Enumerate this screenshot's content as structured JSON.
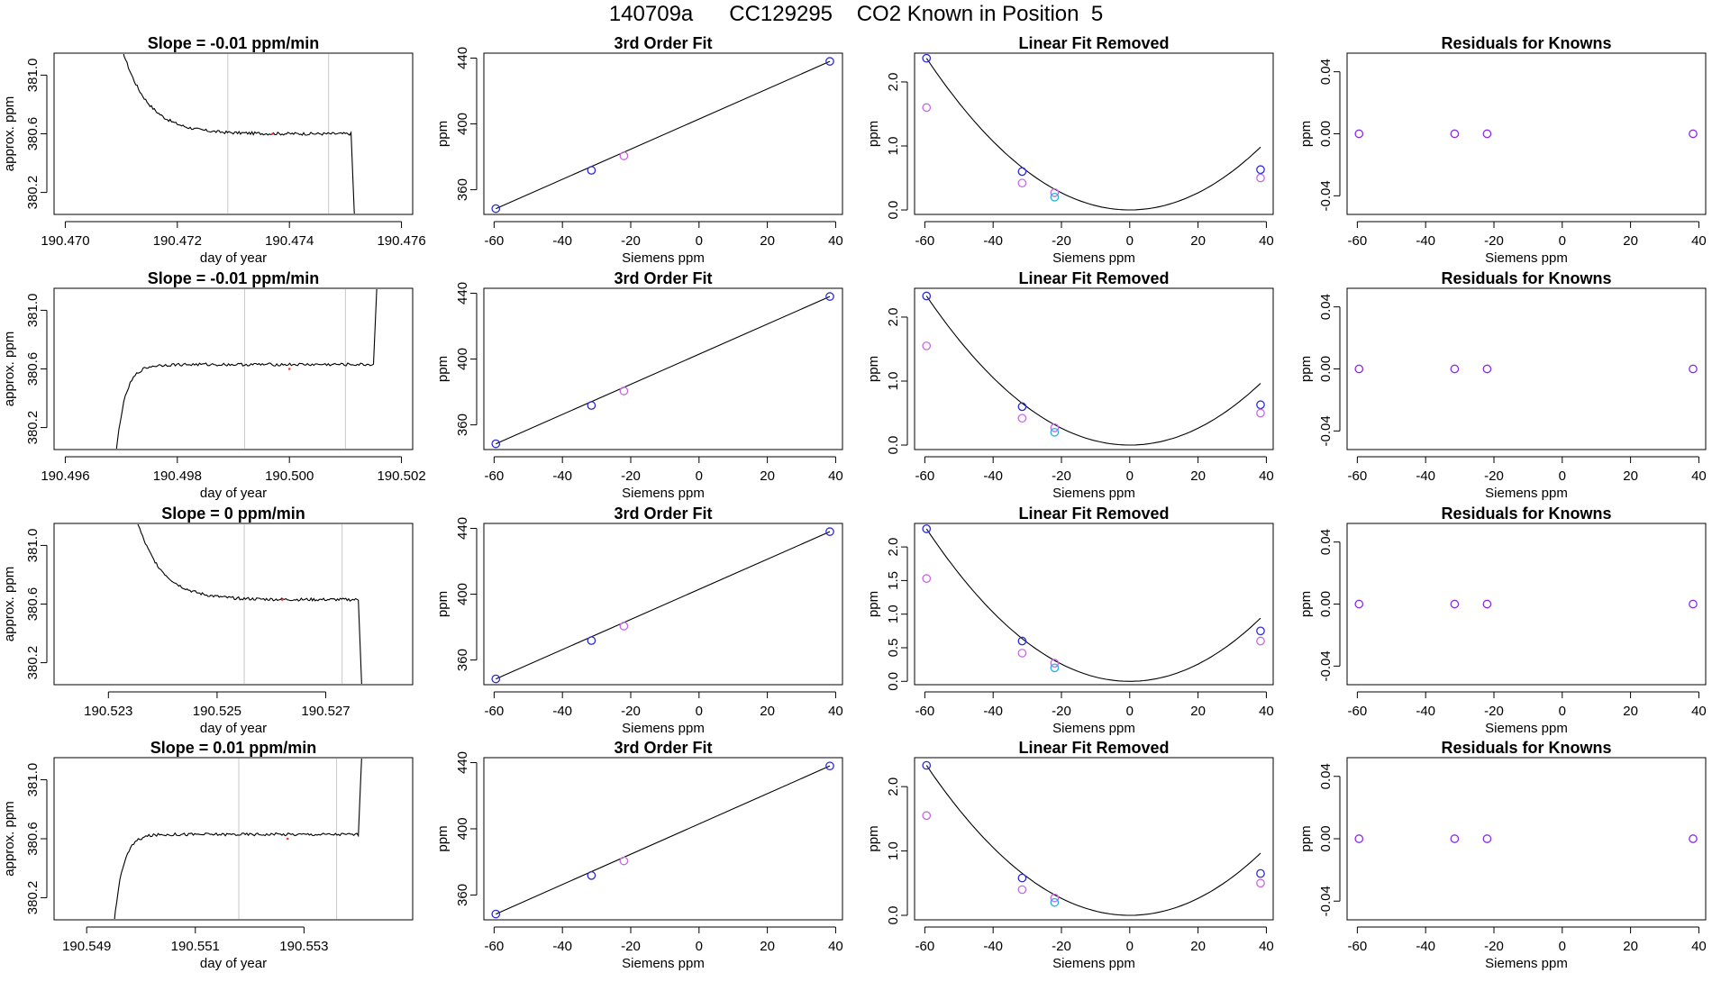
{
  "header": {
    "title": "140709a      CC129295    CO2 Known in Position  5"
  },
  "colors": {
    "axis": "#000000",
    "trace": "#000000",
    "marker_line": "#c8c8c8",
    "fit_point": "#2b2bd6",
    "reference_point": "#c66adf",
    "lin_point_blue": "#2b2bd6",
    "lin_point_violet": "#c66adf",
    "lin_point_cyan": "#20b2e0",
    "residual_point": "#8a2be2",
    "red_dot": "#ff3333"
  },
  "chart_data": [
    {
      "row": 1,
      "type": "line",
      "title": "Slope =  -0.01  ppm/min",
      "xlabel": "day of year",
      "ylabel": "approx. ppm",
      "xlim": [
        190.4698,
        190.4762
      ],
      "ylim": [
        380.05,
        381.15
      ],
      "xticks": [
        190.47,
        190.472,
        190.474,
        190.476
      ],
      "xtick_labels": [
        "190.470",
        "190.472",
        "190.474",
        "190.476"
      ],
      "yticks": [
        380.2,
        380.6,
        381.0
      ],
      "ytick_labels": [
        "380.2",
        "380.6",
        "381.0"
      ],
      "markers": [
        190.4729,
        190.4747
      ],
      "trace": {
        "shape": "decay",
        "x0": 190.471,
        "x1": 190.4751,
        "xfall": 190.4751,
        "ystart": 381.2,
        "ylevel": 380.6,
        "yend": 380.0
      },
      "red_dot": [
        190.4737,
        380.6
      ]
    },
    {
      "row": 1,
      "type": "scatter",
      "title": "3rd Order Fit",
      "xlabel": "Siemens ppm",
      "ylabel": "ppm",
      "xlim": [
        -63,
        42
      ],
      "ylim": [
        345,
        443
      ],
      "xticks": [
        -60,
        -40,
        -20,
        0,
        20,
        40
      ],
      "xtick_labels": [
        "-60",
        "-40",
        "-20",
        "0",
        "20",
        "40"
      ],
      "yticks": [
        360,
        400,
        440
      ],
      "ytick_labels": [
        "360",
        "400",
        "440"
      ],
      "line": [
        [
          -59.5,
          348.5
        ],
        [
          38.3,
          438.0
        ]
      ],
      "points": [
        {
          "x": -59.5,
          "y": 348.5,
          "c": "blue"
        },
        {
          "x": -31.5,
          "y": 371.8,
          "c": "blue"
        },
        {
          "x": -22,
          "y": 380.6,
          "c": "violet"
        },
        {
          "x": 38.3,
          "y": 438.0,
          "c": "blue"
        }
      ]
    },
    {
      "row": 1,
      "type": "scatter",
      "title": "Linear Fit Removed",
      "xlabel": "Siemens ppm",
      "ylabel": "ppm",
      "xlim": [
        -63,
        42
      ],
      "ylim": [
        -0.07,
        2.45
      ],
      "xticks": [
        -60,
        -40,
        -20,
        0,
        20,
        40
      ],
      "xtick_labels": [
        "-60",
        "-40",
        "-20",
        "0",
        "20",
        "40"
      ],
      "yticks": [
        0.0,
        1.0,
        2.0
      ],
      "ytick_labels": [
        "0.0",
        "1.0",
        "2.0"
      ],
      "curve": {
        "vertex": 0,
        "y_left": 2.37,
        "x_left": -59.5,
        "x_right": 38.3
      },
      "points": [
        {
          "x": -59.5,
          "y": 2.37,
          "c": "blue"
        },
        {
          "x": -59.5,
          "y": 1.6,
          "c": "violet"
        },
        {
          "x": -31.5,
          "y": 0.6,
          "c": "blue"
        },
        {
          "x": -31.5,
          "y": 0.42,
          "c": "violet"
        },
        {
          "x": -22,
          "y": 0.27,
          "c": "violet"
        },
        {
          "x": -22,
          "y": 0.2,
          "c": "cyan"
        },
        {
          "x": 38.3,
          "y": 0.63,
          "c": "blue"
        },
        {
          "x": 38.3,
          "y": 0.5,
          "c": "violet"
        }
      ]
    },
    {
      "row": 1,
      "type": "scatter",
      "title": "Residuals for Knowns",
      "xlabel": "Siemens ppm",
      "ylabel": "ppm",
      "xlim": [
        -63,
        42
      ],
      "ylim": [
        -0.052,
        0.052
      ],
      "xticks": [
        -60,
        -40,
        -20,
        0,
        20,
        40
      ],
      "xtick_labels": [
        "-60",
        "-40",
        "-20",
        "0",
        "20",
        "40"
      ],
      "yticks": [
        -0.04,
        0.0,
        0.04
      ],
      "ytick_labels": [
        "-0.04",
        "0.00",
        "0.04"
      ],
      "points": [
        {
          "x": -59.5,
          "y": 0,
          "c": "purple"
        },
        {
          "x": -31.5,
          "y": 0,
          "c": "purple"
        },
        {
          "x": -22,
          "y": 0,
          "c": "purple"
        },
        {
          "x": 38.3,
          "y": 0,
          "c": "purple"
        }
      ]
    },
    {
      "row": 2,
      "type": "line",
      "title": "Slope =  -0.01  ppm/min",
      "xlabel": "day of year",
      "ylabel": "approx. ppm",
      "xlim": [
        190.4958,
        190.5022
      ],
      "ylim": [
        380.05,
        381.15
      ],
      "xticks": [
        190.496,
        190.498,
        190.5,
        190.502
      ],
      "xtick_labels": [
        "190.496",
        "190.498",
        "190.500",
        "190.502"
      ],
      "yticks": [
        380.2,
        380.6,
        381.0
      ],
      "ytick_labels": [
        "380.2",
        "380.6",
        "381.0"
      ],
      "markers": [
        190.4992,
        190.501
      ],
      "trace": {
        "shape": "rise",
        "x0": 190.4969,
        "x1": 190.5015,
        "xfall": 190.5015,
        "ystart": 380.0,
        "ylevel": 380.63,
        "yend": 381.2
      },
      "red_dot": [
        190.5,
        380.6
      ]
    },
    {
      "row": 2,
      "type": "scatter",
      "title": "3rd Order Fit",
      "xlabel": "Siemens ppm",
      "ylabel": "ppm",
      "xlim": [
        -63,
        42
      ],
      "ylim": [
        345,
        443
      ],
      "xticks": [
        -60,
        -40,
        -20,
        0,
        20,
        40
      ],
      "xtick_labels": [
        "-60",
        "-40",
        "-20",
        "0",
        "20",
        "40"
      ],
      "yticks": [
        360,
        400,
        440
      ],
      "ytick_labels": [
        "360",
        "400",
        "440"
      ],
      "line": [
        [
          -59.5,
          348.5
        ],
        [
          38.3,
          438.0
        ]
      ],
      "points": [
        {
          "x": -59.5,
          "y": 348.5,
          "c": "blue"
        },
        {
          "x": -31.5,
          "y": 371.8,
          "c": "blue"
        },
        {
          "x": -22,
          "y": 380.6,
          "c": "violet"
        },
        {
          "x": 38.3,
          "y": 438.0,
          "c": "blue"
        }
      ]
    },
    {
      "row": 2,
      "type": "scatter",
      "title": "Linear Fit Removed",
      "xlabel": "Siemens ppm",
      "ylabel": "ppm",
      "xlim": [
        -63,
        42
      ],
      "ylim": [
        -0.07,
        2.45
      ],
      "xticks": [
        -60,
        -40,
        -20,
        0,
        20,
        40
      ],
      "xtick_labels": [
        "-60",
        "-40",
        "-20",
        "0",
        "20",
        "40"
      ],
      "yticks": [
        0.0,
        1.0,
        2.0
      ],
      "ytick_labels": [
        "0.0",
        "1.0",
        "2.0"
      ],
      "curve": {
        "vertex": 0,
        "y_left": 2.33,
        "x_left": -59.5,
        "x_right": 38.3
      },
      "points": [
        {
          "x": -59.5,
          "y": 2.33,
          "c": "blue"
        },
        {
          "x": -59.5,
          "y": 1.55,
          "c": "violet"
        },
        {
          "x": -31.5,
          "y": 0.6,
          "c": "blue"
        },
        {
          "x": -31.5,
          "y": 0.42,
          "c": "violet"
        },
        {
          "x": -22,
          "y": 0.27,
          "c": "violet"
        },
        {
          "x": -22,
          "y": 0.2,
          "c": "cyan"
        },
        {
          "x": 38.3,
          "y": 0.63,
          "c": "blue"
        },
        {
          "x": 38.3,
          "y": 0.5,
          "c": "violet"
        }
      ]
    },
    {
      "row": 2,
      "type": "scatter",
      "title": "Residuals for Knowns",
      "xlabel": "Siemens ppm",
      "ylabel": "ppm",
      "xlim": [
        -63,
        42
      ],
      "ylim": [
        -0.052,
        0.052
      ],
      "xticks": [
        -60,
        -40,
        -20,
        0,
        20,
        40
      ],
      "xtick_labels": [
        "-60",
        "-40",
        "-20",
        "0",
        "20",
        "40"
      ],
      "yticks": [
        -0.04,
        0.0,
        0.04
      ],
      "ytick_labels": [
        "-0.04",
        "0.00",
        "0.04"
      ],
      "points": [
        {
          "x": -59.5,
          "y": 0,
          "c": "purple"
        },
        {
          "x": -31.5,
          "y": 0,
          "c": "purple"
        },
        {
          "x": -22,
          "y": 0,
          "c": "purple"
        },
        {
          "x": 38.3,
          "y": 0,
          "c": "purple"
        }
      ]
    },
    {
      "row": 3,
      "type": "line",
      "title": "Slope =  0  ppm/min",
      "xlabel": "day of year",
      "ylabel": "approx. ppm",
      "xlim": [
        190.522,
        190.5286
      ],
      "ylim": [
        380.05,
        381.15
      ],
      "xticks": [
        190.523,
        190.525,
        190.527
      ],
      "xtick_labels": [
        "190.523",
        "190.525",
        "190.527"
      ],
      "yticks": [
        380.2,
        380.6,
        381.0
      ],
      "ytick_labels": [
        "380.2",
        "380.6",
        "381.0"
      ],
      "markers": [
        190.5255,
        190.5273
      ],
      "trace": {
        "shape": "decay",
        "x0": 190.5235,
        "x1": 190.5276,
        "xfall": 190.5276,
        "ystart": 381.2,
        "ylevel": 380.63,
        "yend": 380.0
      },
      "red_dot": [
        190.5262,
        380.63
      ]
    },
    {
      "row": 3,
      "type": "scatter",
      "title": "3rd Order Fit",
      "xlabel": "Siemens ppm",
      "ylabel": "ppm",
      "xlim": [
        -63,
        42
      ],
      "ylim": [
        345,
        443
      ],
      "xticks": [
        -60,
        -40,
        -20,
        0,
        20,
        40
      ],
      "xtick_labels": [
        "-60",
        "-40",
        "-20",
        "0",
        "20",
        "40"
      ],
      "yticks": [
        360,
        400,
        440
      ],
      "ytick_labels": [
        "360",
        "400",
        "440"
      ],
      "line": [
        [
          -59.5,
          348.5
        ],
        [
          38.3,
          438.0
        ]
      ],
      "points": [
        {
          "x": -59.5,
          "y": 348.5,
          "c": "blue"
        },
        {
          "x": -31.5,
          "y": 371.8,
          "c": "blue"
        },
        {
          "x": -22,
          "y": 380.6,
          "c": "violet"
        },
        {
          "x": 38.3,
          "y": 438.0,
          "c": "blue"
        }
      ]
    },
    {
      "row": 3,
      "type": "scatter",
      "title": "Linear Fit Removed",
      "xlabel": "Siemens ppm",
      "ylabel": "ppm",
      "xlim": [
        -63,
        42
      ],
      "ylim": [
        -0.05,
        2.35
      ],
      "xticks": [
        -60,
        -40,
        -20,
        0,
        20,
        40
      ],
      "xtick_labels": [
        "-60",
        "-40",
        "-20",
        "0",
        "20",
        "40"
      ],
      "yticks": [
        0.0,
        0.5,
        1.0,
        1.5,
        2.0
      ],
      "ytick_labels": [
        "0.0",
        "0.5",
        "1.0",
        "1.5",
        "2.0"
      ],
      "curve": {
        "vertex": 0,
        "y_left": 2.27,
        "x_left": -59.5,
        "x_right": 38.3
      },
      "points": [
        {
          "x": -59.5,
          "y": 2.27,
          "c": "blue"
        },
        {
          "x": -59.5,
          "y": 1.53,
          "c": "violet"
        },
        {
          "x": -31.5,
          "y": 0.6,
          "c": "blue"
        },
        {
          "x": -31.5,
          "y": 0.42,
          "c": "violet"
        },
        {
          "x": -22,
          "y": 0.27,
          "c": "violet"
        },
        {
          "x": -22,
          "y": 0.2,
          "c": "cyan"
        },
        {
          "x": 38.3,
          "y": 0.75,
          "c": "blue"
        },
        {
          "x": 38.3,
          "y": 0.6,
          "c": "violet"
        }
      ]
    },
    {
      "row": 3,
      "type": "scatter",
      "title": "Residuals for Knowns",
      "xlabel": "Siemens ppm",
      "ylabel": "ppm",
      "xlim": [
        -63,
        42
      ],
      "ylim": [
        -0.052,
        0.052
      ],
      "xticks": [
        -60,
        -40,
        -20,
        0,
        20,
        40
      ],
      "xtick_labels": [
        "-60",
        "-40",
        "-20",
        "0",
        "20",
        "40"
      ],
      "yticks": [
        -0.04,
        0.0,
        0.04
      ],
      "ytick_labels": [
        "-0.04",
        "0.00",
        "0.04"
      ],
      "points": [
        {
          "x": -59.5,
          "y": 0,
          "c": "purple"
        },
        {
          "x": -31.5,
          "y": 0,
          "c": "purple"
        },
        {
          "x": -22,
          "y": 0,
          "c": "purple"
        },
        {
          "x": 38.3,
          "y": 0,
          "c": "purple"
        }
      ]
    },
    {
      "row": 4,
      "type": "line",
      "title": "Slope =  0.01  ppm/min",
      "xlabel": "day of year",
      "ylabel": "approx. ppm",
      "xlim": [
        190.5484,
        190.555
      ],
      "ylim": [
        380.05,
        381.15
      ],
      "xticks": [
        190.549,
        190.551,
        190.553
      ],
      "xtick_labels": [
        "190.549",
        "190.551",
        "190.553"
      ],
      "yticks": [
        380.2,
        380.6,
        381.0
      ],
      "ytick_labels": [
        "380.2",
        "380.6",
        "381.0"
      ],
      "markers": [
        190.5518,
        190.5536
      ],
      "trace": {
        "shape": "rise",
        "x0": 190.5495,
        "x1": 190.554,
        "xfall": 190.554,
        "ystart": 380.0,
        "ylevel": 380.63,
        "yend": 381.2
      },
      "red_dot": [
        190.5527,
        380.6
      ]
    },
    {
      "row": 4,
      "type": "scatter",
      "title": "3rd Order Fit",
      "xlabel": "Siemens ppm",
      "ylabel": "ppm",
      "xlim": [
        -63,
        42
      ],
      "ylim": [
        345,
        443
      ],
      "xticks": [
        -60,
        -40,
        -20,
        0,
        20,
        40
      ],
      "xtick_labels": [
        "-60",
        "-40",
        "-20",
        "0",
        "20",
        "40"
      ],
      "yticks": [
        360,
        400,
        440
      ],
      "ytick_labels": [
        "360",
        "400",
        "440"
      ],
      "line": [
        [
          -59.5,
          348.5
        ],
        [
          38.3,
          438.0
        ]
      ],
      "points": [
        {
          "x": -59.5,
          "y": 348.5,
          "c": "blue"
        },
        {
          "x": -31.5,
          "y": 371.8,
          "c": "blue"
        },
        {
          "x": -22,
          "y": 380.6,
          "c": "violet"
        },
        {
          "x": 38.3,
          "y": 438.0,
          "c": "blue"
        }
      ]
    },
    {
      "row": 4,
      "type": "scatter",
      "title": "Linear Fit Removed",
      "xlabel": "Siemens ppm",
      "ylabel": "ppm",
      "xlim": [
        -63,
        42
      ],
      "ylim": [
        -0.07,
        2.45
      ],
      "xticks": [
        -60,
        -40,
        -20,
        0,
        20,
        40
      ],
      "xtick_labels": [
        "-60",
        "-40",
        "-20",
        "0",
        "20",
        "40"
      ],
      "yticks": [
        0.0,
        1.0,
        2.0
      ],
      "ytick_labels": [
        "0.0",
        "1.0",
        "2.0"
      ],
      "curve": {
        "vertex": 0,
        "y_left": 2.33,
        "x_left": -59.5,
        "x_right": 38.3
      },
      "points": [
        {
          "x": -59.5,
          "y": 2.33,
          "c": "blue"
        },
        {
          "x": -59.5,
          "y": 1.55,
          "c": "violet"
        },
        {
          "x": -31.5,
          "y": 0.58,
          "c": "blue"
        },
        {
          "x": -31.5,
          "y": 0.4,
          "c": "violet"
        },
        {
          "x": -22,
          "y": 0.27,
          "c": "violet"
        },
        {
          "x": -22,
          "y": 0.2,
          "c": "cyan"
        },
        {
          "x": 38.3,
          "y": 0.65,
          "c": "blue"
        },
        {
          "x": 38.3,
          "y": 0.5,
          "c": "violet"
        }
      ]
    },
    {
      "row": 4,
      "type": "scatter",
      "title": "Residuals for Knowns",
      "xlabel": "Siemens ppm",
      "ylabel": "ppm",
      "xlim": [
        -63,
        42
      ],
      "ylim": [
        -0.052,
        0.052
      ],
      "xticks": [
        -60,
        -40,
        -20,
        0,
        20,
        40
      ],
      "xtick_labels": [
        "-60",
        "-40",
        "-20",
        "0",
        "20",
        "40"
      ],
      "yticks": [
        -0.04,
        0.0,
        0.04
      ],
      "ytick_labels": [
        "-0.04",
        "0.00",
        "0.04"
      ],
      "points": [
        {
          "x": -59.5,
          "y": 0,
          "c": "purple"
        },
        {
          "x": -31.5,
          "y": 0,
          "c": "purple"
        },
        {
          "x": -22,
          "y": 0,
          "c": "purple"
        },
        {
          "x": 38.3,
          "y": 0,
          "c": "purple"
        }
      ]
    }
  ]
}
